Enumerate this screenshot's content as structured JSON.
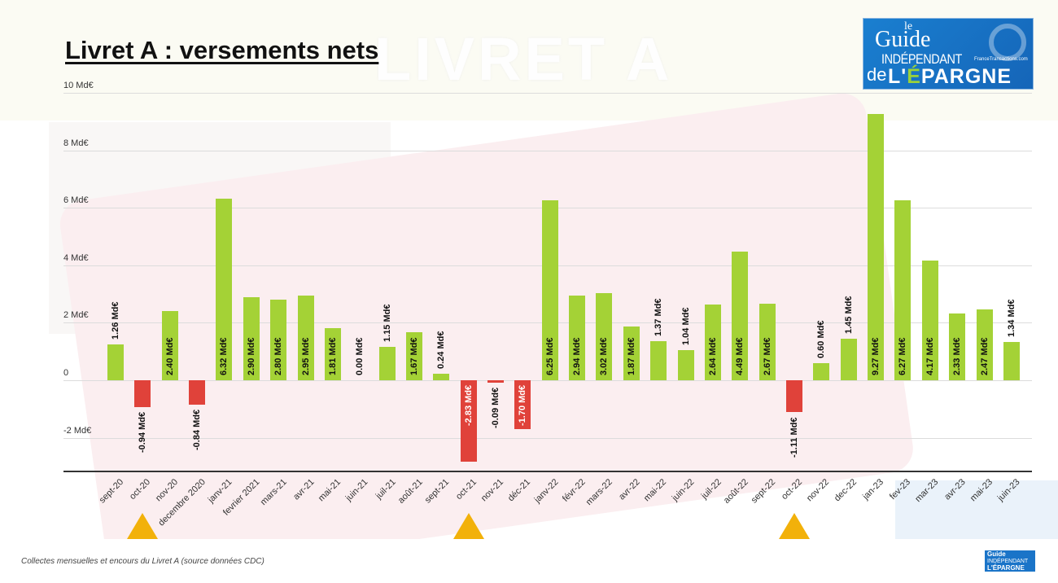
{
  "title": "Livret A : versements nets",
  "watermark_text": "LIVRET A",
  "logo": {
    "le": "le",
    "guide": "Guide",
    "independant": "INDÉPENDANT",
    "site": "FranceTransactions.com",
    "de": "de",
    "epargne_pre": "L'",
    "epargne_accent": "É",
    "epargne_post": "PARGNE"
  },
  "footnote": "Collectes mensuelles et encours du Livret A (source données CDC)",
  "colors": {
    "positive": "#a4d236",
    "negative": "#e0423a",
    "marker": "#f2b10a"
  },
  "chart_data": {
    "type": "bar",
    "title": "Livret A : versements nets",
    "xlabel": "",
    "ylabel": "",
    "ylim": [
      -3,
      10
    ],
    "yticks": [
      {
        "value": 10,
        "label": "10 Md€"
      },
      {
        "value": 8,
        "label": "8 Md€"
      },
      {
        "value": 6,
        "label": "6 Md€"
      },
      {
        "value": 4,
        "label": "4 Md€"
      },
      {
        "value": 2,
        "label": "2 Md€"
      },
      {
        "value": 0,
        "label": "0"
      },
      {
        "value": -2,
        "label": "-2 Md€"
      }
    ],
    "grid": true,
    "unit": "Md€",
    "categories": [
      "sept-20",
      "oct-20",
      "nov-20",
      "decembre 2020",
      "janv-21",
      "fevrier 2021",
      "mars-21",
      "avr-21",
      "mai-21",
      "juin-21",
      "juil-21",
      "août-21",
      "sept-21",
      "oct-21",
      "nov-21",
      "déc-21",
      "janv-22",
      "févr-22",
      "mars-22",
      "avr-22",
      "mai-22",
      "juin-22",
      "juil-22",
      "août-22",
      "sept-22",
      "oct-22",
      "nov-22",
      "dec-22",
      "jan-23",
      "fev-23",
      "mar-23",
      "avr-23",
      "mai-23",
      "juin-23"
    ],
    "values": [
      1.26,
      -0.94,
      2.4,
      -0.84,
      6.32,
      2.9,
      2.8,
      2.95,
      1.81,
      0.0,
      1.15,
      1.67,
      0.24,
      -2.83,
      -0.09,
      -1.7,
      6.25,
      2.94,
      3.02,
      1.87,
      1.37,
      1.04,
      2.64,
      4.49,
      2.67,
      -1.11,
      0.6,
      1.45,
      9.27,
      6.27,
      4.17,
      2.33,
      2.47,
      1.34
    ],
    "data_labels": [
      "1.26 Md€",
      "-0.94 Md€",
      "2.40 Md€",
      "-0.84 Md€",
      "6.32 Md€",
      "2.90 Md€",
      "2.80 Md€",
      "2.95 Md€",
      "1.81 Md€",
      "0.00 Md€",
      "1.15 Md€",
      "1.67 Md€",
      "0.24 Md€",
      "-2.83 Md€",
      "-0.09 Md€",
      "-1.70 Md€",
      "6.25 Md€",
      "2.94 Md€",
      "3.02 Md€",
      "1.87 Md€",
      "1.37 Md€",
      "1.04 Md€",
      "2.64 Md€",
      "4.49 Md€",
      "2.67 Md€",
      "-1.11 Md€",
      "0.60 Md€",
      "1.45 Md€",
      "9.27 Md€",
      "6.27 Md€",
      "4.17 Md€",
      "2.33 Md€",
      "2.47 Md€",
      "1.34 Md€"
    ],
    "annotations": [
      {
        "type": "triangle-marker",
        "category": "oct-20"
      },
      {
        "type": "triangle-marker",
        "category": "oct-21"
      },
      {
        "type": "triangle-marker",
        "category": "oct-22"
      }
    ],
    "legend": null
  }
}
